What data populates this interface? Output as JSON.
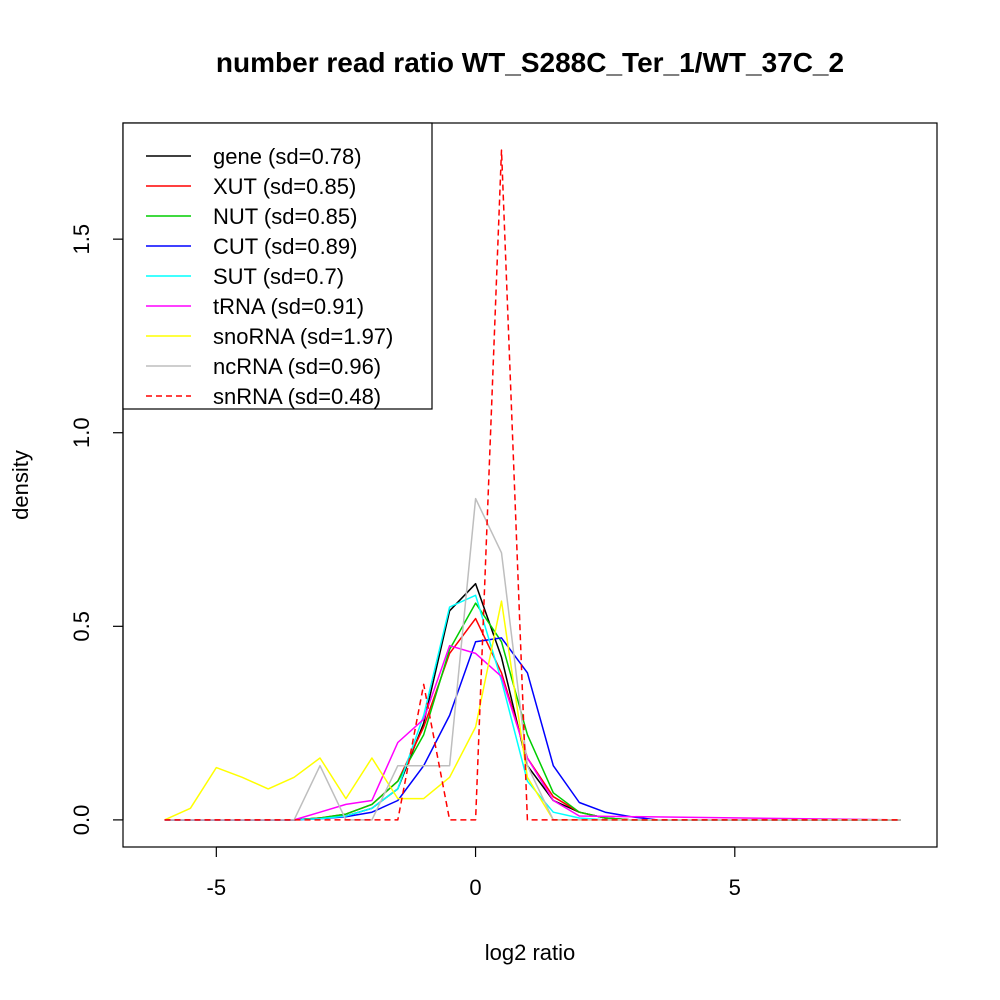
{
  "chart_data": {
    "type": "line",
    "title": "number read ratio WT_S288C_Ter_1/WT_37C_2",
    "xlabel": "log2 ratio",
    "ylabel": "density",
    "xlim": [
      -6.8,
      8.9
    ],
    "ylim": [
      -0.07,
      1.8
    ],
    "x_ticks": [
      -5,
      0,
      5
    ],
    "x_tick_labels": [
      "-5",
      "0",
      "5"
    ],
    "y_ticks": [
      0,
      0.5,
      1,
      1.5
    ],
    "y_tick_labels": [
      "0.0",
      "0.5",
      "1.0",
      "1.5"
    ],
    "grid": false,
    "legend_position": "top-left",
    "series": [
      {
        "name": "gene (sd=0.78)",
        "color": "#000000",
        "dash": "solid",
        "x": [
          -6,
          -3.5,
          -3,
          -2.5,
          -2,
          -1.5,
          -1,
          -0.5,
          0,
          0.5,
          1,
          1.5,
          2,
          2.5,
          3,
          3.5,
          8.2
        ],
        "y": [
          0,
          0,
          0.005,
          0.01,
          0.03,
          0.08,
          0.25,
          0.54,
          0.61,
          0.42,
          0.14,
          0.05,
          0.02,
          0.005,
          0,
          0,
          0
        ]
      },
      {
        "name": "XUT (sd=0.85)",
        "color": "#ff0000",
        "dash": "solid",
        "x": [
          -6,
          -3.5,
          -3,
          -2.5,
          -2,
          -1.5,
          -1,
          -0.5,
          0,
          0.5,
          1,
          1.5,
          2,
          2.5,
          3,
          8.2
        ],
        "y": [
          0,
          0,
          0.005,
          0.015,
          0.04,
          0.1,
          0.24,
          0.43,
          0.52,
          0.38,
          0.16,
          0.06,
          0.02,
          0.005,
          0,
          0
        ]
      },
      {
        "name": "NUT (sd=0.85)",
        "color": "#00cd00",
        "dash": "solid",
        "x": [
          -6,
          -3.5,
          -3,
          -2.5,
          -2,
          -1.5,
          -1,
          -0.5,
          0,
          0.5,
          1,
          1.5,
          2,
          2.5,
          3,
          8.2
        ],
        "y": [
          0,
          0,
          0.005,
          0.015,
          0.04,
          0.1,
          0.22,
          0.44,
          0.56,
          0.46,
          0.22,
          0.07,
          0.02,
          0.005,
          0,
          0
        ]
      },
      {
        "name": "CUT (sd=0.89)",
        "color": "#0000ff",
        "dash": "solid",
        "x": [
          -6,
          -3.5,
          -3,
          -2.5,
          -2,
          -1.5,
          -1,
          -0.5,
          0,
          0.5,
          1,
          1.5,
          2,
          2.5,
          3,
          3.5,
          8.2
        ],
        "y": [
          0,
          0,
          0.003,
          0.008,
          0.02,
          0.05,
          0.14,
          0.27,
          0.46,
          0.47,
          0.38,
          0.14,
          0.045,
          0.02,
          0.008,
          0,
          0
        ]
      },
      {
        "name": "SUT (sd=0.7)",
        "color": "#00ffff",
        "dash": "solid",
        "x": [
          -6,
          -3.5,
          -3,
          -2.5,
          -2,
          -1.5,
          -1,
          -0.5,
          0,
          0.5,
          1,
          1.5,
          2,
          2.5,
          8.2
        ],
        "y": [
          0,
          0,
          0.003,
          0.01,
          0.03,
          0.08,
          0.27,
          0.55,
          0.58,
          0.36,
          0.1,
          0.02,
          0.005,
          0,
          0
        ]
      },
      {
        "name": "tRNA (sd=0.91)",
        "color": "#ff00ff",
        "dash": "solid",
        "x": [
          -6,
          -3.5,
          -3,
          -2.5,
          -2,
          -1.5,
          -1,
          -0.5,
          0,
          0.5,
          1,
          1.5,
          2,
          8.2
        ],
        "y": [
          0,
          0,
          0.02,
          0.04,
          0.05,
          0.2,
          0.26,
          0.45,
          0.43,
          0.37,
          0.16,
          0.05,
          0.01,
          0
        ]
      },
      {
        "name": "snoRNA (sd=1.97)",
        "color": "#ffff00",
        "dash": "solid",
        "x": [
          -6,
          -5.5,
          -5,
          -4.5,
          -4,
          -3.5,
          -3,
          -2.5,
          -2,
          -1.5,
          -1,
          -0.5,
          0,
          0.5,
          1,
          1.5,
          8.2
        ],
        "y": [
          0,
          0.03,
          0.135,
          0.11,
          0.08,
          0.11,
          0.16,
          0.055,
          0.16,
          0.055,
          0.055,
          0.11,
          0.24,
          0.565,
          0.11,
          0,
          0
        ]
      },
      {
        "name": "ncRNA (sd=0.96)",
        "color": "#bebebe",
        "dash": "solid",
        "x": [
          -6,
          -3.5,
          -3,
          -2.5,
          -2,
          -1.5,
          -1,
          -0.5,
          0,
          0.5,
          1,
          1.5,
          8.2
        ],
        "y": [
          0,
          0,
          0.14,
          0,
          0,
          0.14,
          0.14,
          0.14,
          0.83,
          0.69,
          0.14,
          0,
          0
        ]
      },
      {
        "name": "snRNA (sd=0.48)",
        "color": "#ff0000",
        "dash": "dashed",
        "x": [
          -6,
          -1.5,
          -1,
          -0.5,
          0,
          0.5,
          1,
          8.2
        ],
        "y": [
          0,
          0,
          0.35,
          0,
          0,
          1.73,
          0,
          0
        ]
      }
    ]
  }
}
